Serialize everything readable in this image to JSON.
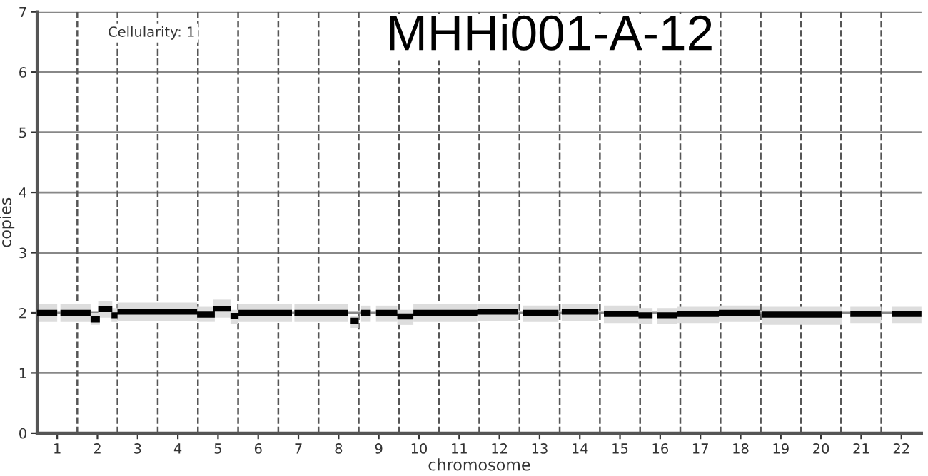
{
  "chart_data": {
    "type": "line",
    "title": "MHHi001-A-12",
    "xlabel": "chromosome",
    "ylabel": "copies",
    "annotations": [
      "Cellularity: 1"
    ],
    "series": [
      {
        "color": "#000000",
        "x": [
          0.5,
          1.0,
          null,
          1.08,
          1.83,
          null,
          1.83,
          2.06,
          null,
          2.02,
          2.37,
          null,
          2.35,
          2.5,
          null,
          2.5,
          4.48,
          null,
          4.48,
          4.92,
          null,
          4.87,
          5.33,
          null,
          5.31,
          5.51,
          null,
          5.51,
          6.84,
          null,
          6.9,
          8.24,
          null,
          8.3,
          8.5,
          null,
          8.56,
          8.8,
          null,
          8.93,
          9.46,
          null,
          9.46,
          9.86,
          null,
          9.86,
          11.45,
          null,
          11.45,
          12.46,
          null,
          12.58,
          13.47,
          null,
          13.55,
          14.46,
          null,
          14.6,
          15.46,
          null,
          15.46,
          15.81,
          null,
          15.92,
          16.43,
          null,
          16.43,
          17.46,
          null,
          17.46,
          18.47,
          null,
          18.53,
          20.52,
          null,
          20.73,
          21.5,
          null,
          21.77,
          22.5
        ],
        "values": [
          2.0,
          2.0,
          null,
          2.0,
          2.0,
          null,
          1.89,
          1.89,
          null,
          2.06,
          2.06,
          null,
          1.96,
          1.96,
          null,
          2.02,
          2.02,
          null,
          1.97,
          1.97,
          null,
          2.07,
          2.07,
          null,
          1.95,
          1.95,
          null,
          2.0,
          2.0,
          null,
          2.0,
          2.0,
          null,
          1.87,
          1.87,
          null,
          2.0,
          2.0,
          null,
          2.0,
          2.0,
          null,
          1.94,
          1.94,
          null,
          2.0,
          2.0,
          null,
          2.02,
          2.02,
          null,
          2.0,
          2.0,
          null,
          2.02,
          2.02,
          null,
          1.98,
          1.98,
          null,
          1.96,
          1.96,
          null,
          1.96,
          1.96,
          null,
          1.98,
          1.98,
          null,
          2.0,
          2.0,
          null,
          1.97,
          1.97,
          null,
          1.98,
          1.98,
          null,
          1.98,
          1.98
        ],
        "lower": [
          1.85,
          1.85,
          null,
          1.85,
          1.85,
          null,
          1.8,
          1.8,
          null,
          1.92,
          1.92,
          null,
          1.85,
          1.85,
          null,
          1.87,
          1.87,
          null,
          1.85,
          1.85,
          null,
          1.92,
          1.92,
          null,
          1.82,
          1.82,
          null,
          1.85,
          1.85,
          null,
          1.85,
          1.85,
          null,
          1.75,
          1.75,
          null,
          1.85,
          1.85,
          null,
          1.85,
          1.85,
          null,
          1.8,
          1.8,
          null,
          1.85,
          1.85,
          null,
          1.87,
          1.87,
          null,
          1.85,
          1.85,
          null,
          1.87,
          1.87,
          null,
          1.83,
          1.83,
          null,
          1.82,
          1.82,
          null,
          1.82,
          1.82,
          null,
          1.83,
          1.83,
          null,
          1.85,
          1.85,
          null,
          1.8,
          1.8,
          null,
          1.83,
          1.83,
          null,
          1.83,
          1.83
        ],
        "upper": [
          2.15,
          2.15,
          null,
          2.15,
          2.15,
          null,
          2.0,
          2.0,
          null,
          2.2,
          2.2,
          null,
          2.08,
          2.08,
          null,
          2.17,
          2.17,
          null,
          2.1,
          2.1,
          null,
          2.22,
          2.22,
          null,
          2.05,
          2.05,
          null,
          2.15,
          2.15,
          null,
          2.15,
          2.15,
          null,
          1.95,
          1.95,
          null,
          2.12,
          2.12,
          null,
          2.12,
          2.12,
          null,
          2.05,
          2.05,
          null,
          2.15,
          2.15,
          null,
          2.15,
          2.15,
          null,
          2.12,
          2.12,
          null,
          2.15,
          2.15,
          null,
          2.12,
          2.12,
          null,
          2.08,
          2.08,
          null,
          2.08,
          2.08,
          null,
          2.1,
          2.1,
          null,
          2.12,
          2.12,
          null,
          2.1,
          2.1,
          null,
          2.1,
          2.1,
          null,
          2.1,
          2.1
        ]
      }
    ],
    "xlim": [
      0.5,
      22.5
    ],
    "xticks": [
      1,
      2,
      3,
      4,
      5,
      6,
      7,
      8,
      9,
      10,
      11,
      12,
      13,
      14,
      15,
      16,
      17,
      18,
      19,
      20,
      21,
      22
    ],
    "ylim": [
      0,
      7
    ],
    "yticks": [
      0,
      1,
      2,
      3,
      4,
      5,
      6,
      7
    ],
    "grid": "y",
    "ref_lines": [
      {
        "axis": "x",
        "value": 1.5,
        "line_style": "dashed",
        "color": "#555555"
      },
      {
        "axis": "x",
        "value": 2.5,
        "line_style": "dashed",
        "color": "#555555"
      },
      {
        "axis": "x",
        "value": 3.5,
        "line_style": "dashed",
        "color": "#555555"
      },
      {
        "axis": "x",
        "value": 4.5,
        "line_style": "dashed",
        "color": "#555555"
      },
      {
        "axis": "x",
        "value": 5.5,
        "line_style": "dashed",
        "color": "#555555"
      },
      {
        "axis": "x",
        "value": 6.5,
        "line_style": "dashed",
        "color": "#555555"
      },
      {
        "axis": "x",
        "value": 7.5,
        "line_style": "dashed",
        "color": "#555555"
      },
      {
        "axis": "x",
        "value": 8.5,
        "line_style": "dashed",
        "color": "#555555"
      },
      {
        "axis": "x",
        "value": 9.5,
        "line_style": "dashed",
        "color": "#555555"
      },
      {
        "axis": "x",
        "value": 10.5,
        "line_style": "dashed",
        "color": "#555555"
      },
      {
        "axis": "x",
        "value": 11.5,
        "line_style": "dashed",
        "color": "#555555"
      },
      {
        "axis": "x",
        "value": 12.5,
        "line_style": "dashed",
        "color": "#555555"
      },
      {
        "axis": "x",
        "value": 13.5,
        "line_style": "dashed",
        "color": "#555555"
      },
      {
        "axis": "x",
        "value": 14.5,
        "line_style": "dashed",
        "color": "#555555"
      },
      {
        "axis": "x",
        "value": 15.5,
        "line_style": "dashed",
        "color": "#555555"
      },
      {
        "axis": "x",
        "value": 16.5,
        "line_style": "dashed",
        "color": "#555555"
      },
      {
        "axis": "x",
        "value": 17.5,
        "line_style": "dashed",
        "color": "#555555"
      },
      {
        "axis": "x",
        "value": 18.5,
        "line_style": "dashed",
        "color": "#555555"
      },
      {
        "axis": "x",
        "value": 19.5,
        "line_style": "dashed",
        "color": "#555555"
      },
      {
        "axis": "x",
        "value": 20.5,
        "line_style": "dashed",
        "color": "#555555"
      },
      {
        "axis": "x",
        "value": 21.5,
        "line_style": "dashed",
        "color": "#555555"
      }
    ],
    "marker": "none",
    "line_style": "solid"
  }
}
